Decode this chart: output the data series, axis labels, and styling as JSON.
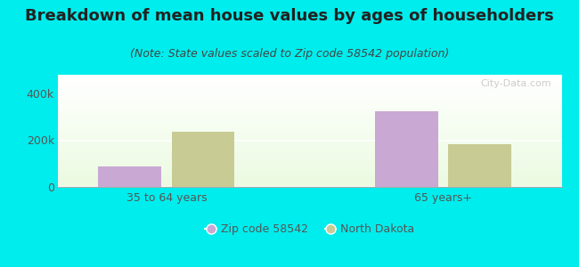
{
  "title": "Breakdown of mean house values by ages of householders",
  "subtitle": "(Note: State values scaled to Zip code 58542 population)",
  "categories": [
    "35 to 64 years",
    "65 years+"
  ],
  "series": [
    {
      "name": "Zip code 58542",
      "values": [
        87500,
        325000
      ],
      "color": "#c9a8d4"
    },
    {
      "name": "North Dakota",
      "values": [
        237500,
        183000
      ],
      "color": "#c8cc94"
    }
  ],
  "ylim": [
    0,
    480000
  ],
  "yticks": [
    0,
    200000,
    400000
  ],
  "ytick_labels": [
    "0",
    "200k",
    "400k"
  ],
  "background_color": "#00eded",
  "bar_width": 0.32,
  "group_positions": [
    1.0,
    2.4
  ],
  "xlim": [
    0.45,
    3.0
  ],
  "title_fontsize": 13,
  "subtitle_fontsize": 9,
  "tick_fontsize": 9,
  "legend_fontsize": 9,
  "title_color": "#222222",
  "subtitle_color": "#444444",
  "tick_color": "#555555",
  "watermark": "City-Data.com",
  "watermark_color": "#c0c0c0"
}
